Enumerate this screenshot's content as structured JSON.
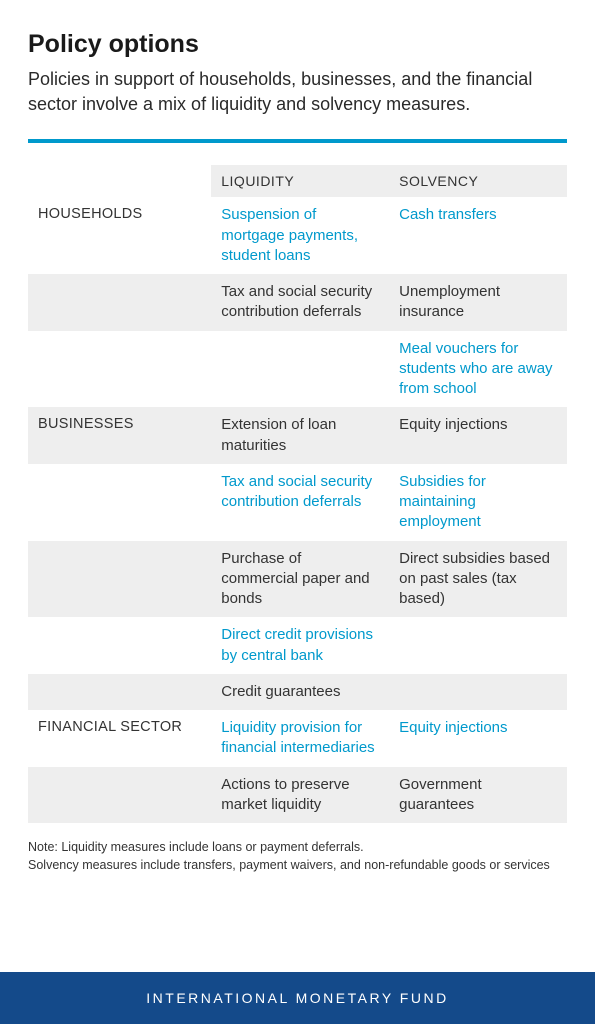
{
  "colors": {
    "accent": "#0099cc",
    "text": "#333333",
    "shaded_row": "#eeeeee",
    "footer_bg": "#144a8a",
    "footer_text": "#ffffff",
    "background": "#ffffff"
  },
  "header": {
    "title": "Policy options",
    "subtitle": "Policies in support of households, businesses, and the financial sector involve a mix of liquidity and solvency measures."
  },
  "table": {
    "columns": {
      "liquidity": "LIQUIDITY",
      "solvency": "SOLVENCY"
    },
    "rows": [
      {
        "category": "HOUSEHOLDS",
        "cat_teal": true,
        "liq": "Suspension of mortgage payments, student loans",
        "liq_teal": true,
        "sol": "Cash transfers",
        "sol_teal": true,
        "shaded": false
      },
      {
        "category": "",
        "cat_teal": false,
        "liq": "Tax and social security contribution deferrals",
        "liq_teal": false,
        "sol": "Unemployment insurance",
        "sol_teal": false,
        "shaded": true
      },
      {
        "category": "",
        "cat_teal": false,
        "liq": "",
        "liq_teal": false,
        "sol": "Meal vouchers for students who are away from school",
        "sol_teal": true,
        "shaded": false
      },
      {
        "category": "BUSINESSES",
        "cat_teal": false,
        "liq": "Extension of loan maturities",
        "liq_teal": false,
        "sol": "Equity injections",
        "sol_teal": false,
        "shaded": true
      },
      {
        "category": "",
        "cat_teal": false,
        "liq": "Tax and social security contribution deferrals",
        "liq_teal": true,
        "sol": "Subsidies for maintaining employment",
        "sol_teal": true,
        "shaded": false
      },
      {
        "category": "",
        "cat_teal": false,
        "liq": "Purchase of commercial paper and bonds",
        "liq_teal": false,
        "sol": "Direct subsidies based on past sales (tax based)",
        "sol_teal": false,
        "shaded": true
      },
      {
        "category": "",
        "cat_teal": false,
        "liq": "Direct credit provisions by central bank",
        "liq_teal": true,
        "sol": "",
        "sol_teal": false,
        "shaded": false
      },
      {
        "category": "",
        "cat_teal": false,
        "liq": "Credit guarantees",
        "liq_teal": false,
        "sol": "",
        "sol_teal": false,
        "shaded": true
      },
      {
        "category": "FINANCIAL SECTOR",
        "cat_teal": true,
        "liq": "Liquidity provision for financial intermediaries",
        "liq_teal": true,
        "sol": "Equity injections",
        "sol_teal": true,
        "shaded": false
      },
      {
        "category": "",
        "cat_teal": false,
        "liq": "Actions to preserve market liquidity",
        "liq_teal": false,
        "sol": "Government guarantees",
        "sol_teal": false,
        "shaded": true
      }
    ]
  },
  "note": {
    "line1": "Note: Liquidity measures include loans or payment deferrals.",
    "line2": "Solvency measures include transfers, payment waivers, and non-refundable goods or services"
  },
  "footer": {
    "org": "INTERNATIONAL MONETARY FUND"
  }
}
